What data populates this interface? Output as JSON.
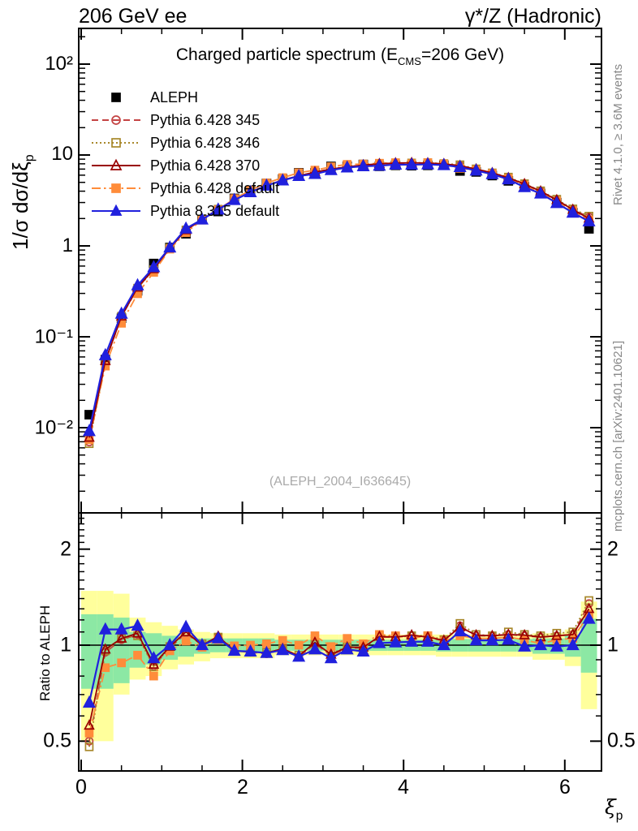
{
  "header": {
    "left": "206 GeV ee",
    "right": "γ*/Z (Hadronic)"
  },
  "main_panel": {
    "title": {
      "pre": "Charged particle spectrum (E",
      "sub": "CMS",
      "post": "=206 GeV)"
    },
    "y_axis": {
      "label_pre": "1/σ  dσ/dξ",
      "label_sub": "p",
      "tick_labels": [
        "10²",
        "10",
        "1",
        "10⁻¹",
        "10⁻²"
      ],
      "tick_values": [
        100,
        10,
        1,
        0.1,
        0.01
      ]
    },
    "watermark": "(ALEPH_2004_I636645)"
  },
  "ratio_panel": {
    "y_axis": {
      "label": "Ratio to ALEPH",
      "tick_labels": [
        "2",
        "1",
        "0.5"
      ],
      "tick_values": [
        2,
        1,
        0.5
      ]
    }
  },
  "x_axis": {
    "label_base": "ξ",
    "label_sub": "p",
    "tick_labels": [
      "0",
      "2",
      "4",
      "6"
    ],
    "tick_values": [
      0,
      2,
      4,
      6
    ]
  },
  "side_notes": {
    "top": "Rivet 4.1.0, ≥ 3.6M events",
    "bottom": "mcplots.cern.ch [arXiv:2401.10621]"
  },
  "chart_data": {
    "type": "line",
    "title": "Charged particle spectrum (E_CMS=206 GeV)",
    "xlabel": "ξ_p",
    "ylabel_main": "1/σ dσ/dξ_p",
    "ylabel_ratio": "Ratio to ALEPH",
    "xlim": [
      0,
      6.45
    ],
    "ylim_main_log": [
      0.00116,
      247
    ],
    "ylim_ratio_log": [
      0.403,
      2.59
    ],
    "bin_width": 0.2,
    "x": [
      0.1,
      0.3,
      0.5,
      0.7,
      0.9,
      1.1,
      1.3,
      1.5,
      1.7,
      1.9,
      2.1,
      2.3,
      2.5,
      2.7,
      2.9,
      3.1,
      3.3,
      3.5,
      3.7,
      3.9,
      4.1,
      4.3,
      4.5,
      4.7,
      4.9,
      5.1,
      5.3,
      5.5,
      5.7,
      5.9,
      6.1,
      6.3
    ],
    "aleph_spectrum": [
      0.0139,
      0.056,
      0.16,
      0.32,
      0.64,
      0.96,
      1.36,
      1.95,
      2.39,
      3.33,
      4.08,
      4.87,
      5.44,
      6.38,
      6.37,
      7.49,
      7.51,
      7.87,
      7.51,
      7.69,
      7.63,
      7.69,
      7.73,
      6.67,
      6.51,
      5.94,
      5.19,
      4.47,
      3.77,
      2.99,
      2.32,
      1.54
    ],
    "series": [
      {
        "name": "ALEPH",
        "color": "#000000",
        "line": "none",
        "marker": "square-filled",
        "ratio": null
      },
      {
        "name": "Pythia 6.428 345",
        "color": "#c44343",
        "line": "dashed",
        "marker": "circle-open",
        "ratio": [
          0.5,
          0.95,
          1.04,
          1.08,
          0.86,
          0.98,
          1.09,
          1.0,
          1.06,
          0.96,
          0.95,
          0.94,
          0.97,
          0.92,
          1.01,
          0.93,
          0.98,
          0.98,
          1.06,
          1.06,
          1.07,
          1.06,
          1.03,
          1.15,
          1.07,
          1.07,
          1.08,
          1.07,
          1.06,
          1.07,
          1.08,
          1.35
        ]
      },
      {
        "name": "Pythia 6.428 346",
        "color": "#a8882b",
        "line": "dotted",
        "marker": "square-open",
        "ratio": [
          0.48,
          0.96,
          1.05,
          1.07,
          0.855,
          0.99,
          1.1,
          1.01,
          1.06,
          0.96,
          0.95,
          0.95,
          0.97,
          0.93,
          1.01,
          0.94,
          0.99,
          0.98,
          1.07,
          1.06,
          1.07,
          1.07,
          1.04,
          1.17,
          1.08,
          1.07,
          1.1,
          1.08,
          1.07,
          1.09,
          1.1,
          1.38
        ]
      },
      {
        "name": "Pythia 6.428 370",
        "color": "#990000",
        "line": "solid",
        "marker": "triangle-open",
        "ratio": [
          0.56,
          0.97,
          1.05,
          1.09,
          0.87,
          0.99,
          1.1,
          1.0,
          1.065,
          0.96,
          0.955,
          0.945,
          0.975,
          0.925,
          1.02,
          0.935,
          0.985,
          0.985,
          1.065,
          1.06,
          1.075,
          1.06,
          1.035,
          1.14,
          1.075,
          1.07,
          1.08,
          1.075,
          1.06,
          1.07,
          1.08,
          1.3
        ]
      },
      {
        "name": "Pythia 6.428 default",
        "color": "#ff8c3a",
        "line": "dashdot",
        "marker": "square-filled",
        "ratio": [
          0.53,
          0.85,
          0.88,
          0.93,
          0.8,
          0.96,
          1.03,
          0.985,
          1.04,
          0.995,
          1.0,
          1.01,
          1.035,
          1.0,
          1.07,
          0.99,
          1.05,
          1.01,
          1.08,
          1.07,
          1.05,
          1.07,
          1.03,
          1.07,
          1.05,
          1.05,
          1.06,
          1.04,
          1.01,
          1.04,
          1.05,
          1.25
        ]
      },
      {
        "name": "Pythia 8.315 default",
        "color": "#2020dd",
        "line": "solid",
        "marker": "triangle-filled",
        "ratio": [
          0.66,
          1.12,
          1.12,
          1.15,
          0.91,
          1.0,
          1.14,
          1.0,
          1.05,
          0.96,
          0.955,
          0.945,
          0.965,
          0.92,
          0.97,
          0.91,
          0.97,
          0.955,
          1.015,
          1.02,
          1.025,
          1.025,
          1.0,
          1.105,
          1.035,
          1.035,
          1.04,
          0.99,
          1.0,
          0.99,
          1.0,
          1.21
        ]
      }
    ],
    "bands": {
      "yellow_color": "#ffff9c",
      "green_color": "#8ce8a4",
      "yellow_lo": [
        0.5,
        0.5,
        0.7,
        0.78,
        0.8,
        0.84,
        0.87,
        0.89,
        0.91,
        0.91,
        0.91,
        0.91,
        0.93,
        0.93,
        0.93,
        0.93,
        0.93,
        0.93,
        0.93,
        0.93,
        0.93,
        0.93,
        0.92,
        0.92,
        0.92,
        0.92,
        0.92,
        0.92,
        0.9,
        0.9,
        0.86,
        0.63
      ],
      "yellow_hi": [
        1.48,
        1.48,
        1.45,
        1.22,
        1.18,
        1.15,
        1.12,
        1.1,
        1.09,
        1.09,
        1.09,
        1.09,
        1.08,
        1.08,
        1.08,
        1.08,
        1.08,
        1.08,
        1.08,
        1.08,
        1.08,
        1.08,
        1.08,
        1.08,
        1.08,
        1.08,
        1.08,
        1.08,
        1.09,
        1.09,
        1.12,
        1.37
      ],
      "green_lo": [
        0.73,
        0.73,
        0.76,
        0.85,
        0.87,
        0.9,
        0.92,
        0.94,
        0.95,
        0.95,
        0.95,
        0.95,
        0.96,
        0.96,
        0.96,
        0.96,
        0.96,
        0.96,
        0.96,
        0.96,
        0.96,
        0.96,
        0.955,
        0.955,
        0.955,
        0.955,
        0.955,
        0.955,
        0.94,
        0.94,
        0.92,
        0.82
      ],
      "green_hi": [
        1.25,
        1.25,
        1.22,
        1.1,
        1.09,
        1.07,
        1.06,
        1.05,
        1.05,
        1.05,
        1.05,
        1.05,
        1.04,
        1.04,
        1.04,
        1.04,
        1.04,
        1.04,
        1.04,
        1.04,
        1.04,
        1.04,
        1.045,
        1.045,
        1.045,
        1.045,
        1.045,
        1.045,
        1.05,
        1.05,
        1.08,
        1.21
      ]
    },
    "legend_position": "top-left-inside"
  }
}
